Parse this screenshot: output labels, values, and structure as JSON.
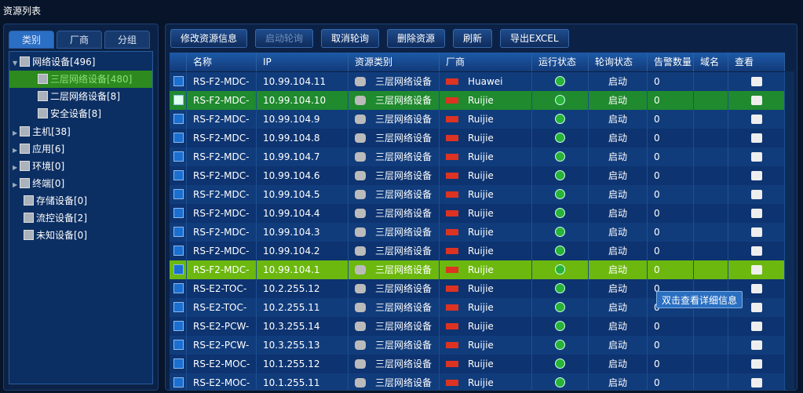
{
  "header": {
    "title": "资源列表"
  },
  "tabs": [
    "类别",
    "厂商",
    "分组"
  ],
  "tree": [
    {
      "label": "网络设备[496]",
      "level": 0,
      "expanded": true
    },
    {
      "label": "三层网络设备[480]",
      "level": 1
    },
    {
      "label": "二层网络设备[8]",
      "level": 1
    },
    {
      "label": "安全设备[8]",
      "level": 1
    },
    {
      "label": "主机[38]",
      "level": 0,
      "expanded": false
    },
    {
      "label": "应用[6]",
      "level": 0,
      "expanded": false
    },
    {
      "label": "环境[0]",
      "level": 0,
      "expanded": false
    },
    {
      "label": "终端[0]",
      "level": 0,
      "expanded": false
    },
    {
      "label": "存储设备[0]",
      "level": 0
    },
    {
      "label": "流控设备[2]",
      "level": 0
    },
    {
      "label": "未知设备[0]",
      "level": 0
    }
  ],
  "toolbar": [
    "修改资源信息",
    "启动轮询",
    "取消轮询",
    "删除资源",
    "刷新",
    "导出EXCEL"
  ],
  "table": {
    "columns": [
      "名称",
      "IP",
      "资源类别",
      "厂商",
      "运行状态",
      "轮询状态",
      "告警数量",
      "域名",
      "查看"
    ],
    "rows": [
      [
        "RS-F2-MDC-",
        "10.99.104.11",
        "三层网络设备",
        "Huawei",
        "启动",
        "0"
      ],
      [
        "RS-F2-MDC-",
        "10.99.104.10",
        "三层网络设备",
        "Ruijie",
        "启动",
        "0"
      ],
      [
        "RS-F2-MDC-",
        "10.99.104.9",
        "三层网络设备",
        "Ruijie",
        "启动",
        "0"
      ],
      [
        "RS-F2-MDC-",
        "10.99.104.8",
        "三层网络设备",
        "Ruijie",
        "启动",
        "0"
      ],
      [
        "RS-F2-MDC-",
        "10.99.104.7",
        "三层网络设备",
        "Ruijie",
        "启动",
        "0"
      ],
      [
        "RS-F2-MDC-",
        "10.99.104.6",
        "三层网络设备",
        "Ruijie",
        "启动",
        "0"
      ],
      [
        "RS-F2-MDC-",
        "10.99.104.5",
        "三层网络设备",
        "Ruijie",
        "启动",
        "0"
      ],
      [
        "RS-F2-MDC-",
        "10.99.104.4",
        "三层网络设备",
        "Ruijie",
        "启动",
        "0"
      ],
      [
        "RS-F2-MDC-",
        "10.99.104.3",
        "三层网络设备",
        "Ruijie",
        "启动",
        "0"
      ],
      [
        "RS-F2-MDC-",
        "10.99.104.2",
        "三层网络设备",
        "Ruijie",
        "启动",
        "0"
      ],
      [
        "RS-F2-MDC-",
        "10.99.104.1",
        "三层网络设备",
        "Ruijie",
        "启动",
        "0"
      ],
      [
        "RS-E2-TOC-",
        "10.2.255.12",
        "三层网络设备",
        "Ruijie",
        "启动",
        "0"
      ],
      [
        "RS-E2-TOC-",
        "10.2.255.11",
        "三层网络设备",
        "Ruijie",
        "启动",
        "0"
      ],
      [
        "RS-E2-PCW-",
        "10.3.255.14",
        "三层网络设备",
        "Ruijie",
        "启动",
        "0"
      ],
      [
        "RS-E2-PCW-",
        "10.3.255.13",
        "三层网络设备",
        "Ruijie",
        "启动",
        "0"
      ],
      [
        "RS-E2-MOC-",
        "10.1.255.12",
        "三层网络设备",
        "Ruijie",
        "启动",
        "0"
      ],
      [
        "RS-E2-MOC-",
        "10.1.255.11",
        "三层网络设备",
        "Ruijie",
        "启动",
        "0"
      ]
    ]
  },
  "tooltip": "双击查看详细信息"
}
